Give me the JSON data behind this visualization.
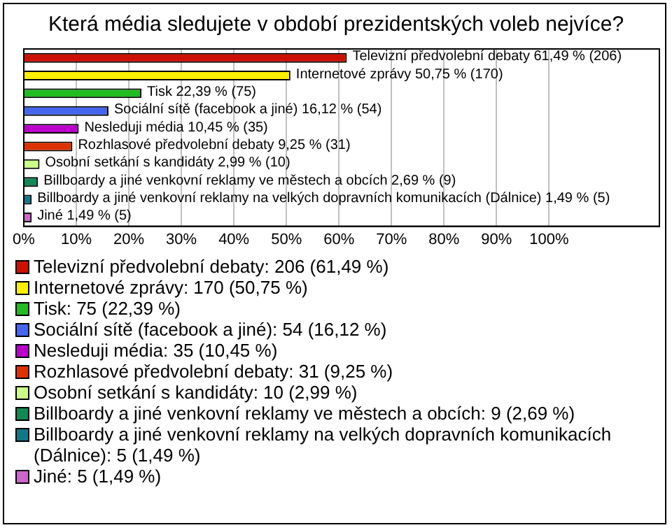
{
  "chart_data": {
    "type": "bar",
    "orientation": "horizontal",
    "title": "Která média sledujete v období prezidentských voleb nejvíce?",
    "categories": [
      null,
      null,
      null,
      null,
      null,
      null,
      null,
      null,
      null,
      null
    ],
    "values": [
      61.49,
      50.75,
      22.39,
      16.12,
      10.45,
      9.25,
      2.99,
      2.69,
      1.49,
      1.49
    ],
    "colors": [
      "#cc1100",
      "#ffee00",
      "#22bb22",
      "#4466ee",
      "#bb00cc",
      "#dd3300",
      "#ccff88",
      "#118855",
      "#117788",
      "#cc66cc"
    ],
    "value_labels": [
      "Televizní předvolební debaty 61,49 % (206)",
      "Internetové zprávy 50,75 % (170)",
      "Tisk 22,39 % (75)",
      "Sociální sítě (facebook a jiné) 16,12 % (54)",
      "Nesleduji média 10,45 % (35)",
      "Rozhlasové předvolební debaty 9,25 % (31)",
      "Osobní setkání s kandidáty 2,99 % (10)",
      "Billboardy a jiné venkovní reklamy ve městech a obcích 2,69 % (9)",
      "Billboardy a jiné venkovní reklamy na velkých dopravních komunikacích (Dálnice) 1,49 % (5)",
      "Jiné 1,49 % (5)"
    ],
    "xlim": [
      0,
      121
    ],
    "xticks": [
      {
        "value": 0,
        "label": "0%"
      },
      {
        "value": 10,
        "label": "10%"
      },
      {
        "value": 20,
        "label": "20%"
      },
      {
        "value": 30,
        "label": "30%"
      },
      {
        "value": 40,
        "label": "40%"
      },
      {
        "value": 50,
        "label": "50%"
      },
      {
        "value": 60,
        "label": "60%"
      },
      {
        "value": 70,
        "label": "70%"
      },
      {
        "value": 80,
        "label": "80%"
      },
      {
        "value": 90,
        "label": "90%"
      },
      {
        "value": 100,
        "label": "100%"
      }
    ],
    "grid": "x",
    "tick_labels": "x",
    "legend": false,
    "annotations": [
      "Televizní předvolební debaty: 206 (61,49 %)",
      "Internetové zprávy: 170 (50,75 %)",
      "Tisk: 75 (22,39 %)",
      "Sociální sítě (facebook a jiné): 54 (16,12 %)",
      "Nesleduji média: 35 (10,45 %)",
      "Rozhlasové předvolební debaty: 31 (9,25 %)",
      "Osobní setkání s kandidáty: 10 (2,99 %)",
      "Billboardy a jiné venkovní reklamy ve městech a obcích: 9 (2,69 %)",
      "Billboardy a jiné venkovní reklamy na velkých dopravních komunikacích (Dálnice): 5 (1,49 %)",
      "Jiné: 5 (1,49 %)"
    ]
  }
}
